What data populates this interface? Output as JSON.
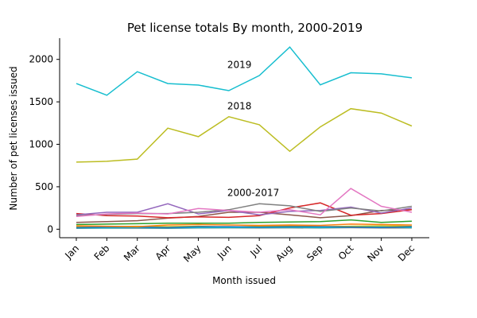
{
  "chart_data": {
    "type": "line",
    "title": "Pet license totals By month, 2000-2019",
    "xlabel": "Month issued",
    "ylabel": "Number of pet licenses issued",
    "categories": [
      "Jan",
      "Feb",
      "Mar",
      "Apr",
      "May",
      "Jun",
      "Jul",
      "Aug",
      "Sep",
      "Oct",
      "Nov",
      "Dec"
    ],
    "ylim": [
      -100,
      2250
    ],
    "yticks": [
      0,
      500,
      1000,
      1500,
      2000
    ],
    "grid": false,
    "annotations": [
      {
        "text": "2019",
        "x": "Jun",
        "y": 1900
      },
      {
        "text": "2018",
        "x": "Jun",
        "y": 1410
      },
      {
        "text": "2000-2017",
        "x": "Jun",
        "y": 390
      }
    ],
    "series": [
      {
        "color": "#17becf",
        "values": [
          1715,
          1578,
          1855,
          1715,
          1698,
          1632,
          1810,
          2145,
          1700,
          1843,
          1830,
          1783
        ]
      },
      {
        "color": "#bcbd22",
        "values": [
          790,
          800,
          826,
          1190,
          1090,
          1325,
          1230,
          918,
          1205,
          1420,
          1368,
          1215
        ]
      },
      {
        "color": "#e377c2",
        "values": [
          150,
          180,
          190,
          180,
          245,
          220,
          200,
          230,
          170,
          480,
          270,
          200
        ]
      },
      {
        "color": "#7f7f7f",
        "values": [
          160,
          175,
          185,
          185,
          200,
          230,
          300,
          275,
          210,
          250,
          215,
          270
        ]
      },
      {
        "color": "#9467bd",
        "values": [
          170,
          200,
          200,
          300,
          180,
          220,
          170,
          210,
          220,
          260,
          190,
          250
        ]
      },
      {
        "color": "#d62728",
        "values": [
          185,
          160,
          155,
          135,
          145,
          140,
          160,
          250,
          310,
          165,
          185,
          230
        ]
      },
      {
        "color": "#8c564b",
        "values": [
          80,
          90,
          100,
          130,
          150,
          200,
          200,
          170,
          135,
          160,
          220,
          230
        ]
      },
      {
        "color": "#2ca02c",
        "values": [
          55,
          60,
          65,
          70,
          70,
          70,
          80,
          85,
          90,
          110,
          80,
          95
        ]
      },
      {
        "color": "#ff7f0e",
        "values": [
          40,
          35,
          30,
          50,
          55,
          50,
          45,
          50,
          45,
          60,
          55,
          50
        ]
      },
      {
        "color": "#1f77b4",
        "values": [
          20,
          25,
          25,
          20,
          30,
          30,
          25,
          30,
          30,
          25,
          20,
          30
        ]
      },
      {
        "color": "#17becf",
        "values": [
          15,
          15,
          18,
          15,
          18,
          20,
          20,
          22,
          18,
          25,
          25,
          20
        ]
      },
      {
        "color": "#bcbd22",
        "values": [
          30,
          30,
          35,
          30,
          35,
          25,
          35,
          40,
          30,
          35,
          40,
          35
        ]
      },
      {
        "color": "#7f7f7f",
        "values": [
          10,
          12,
          12,
          10,
          14,
          16,
          14,
          16,
          14,
          18,
          14,
          15
        ]
      },
      {
        "color": "#e377c2",
        "values": [
          25,
          22,
          28,
          24,
          30,
          26,
          30,
          34,
          28,
          30,
          26,
          28
        ]
      }
    ]
  }
}
